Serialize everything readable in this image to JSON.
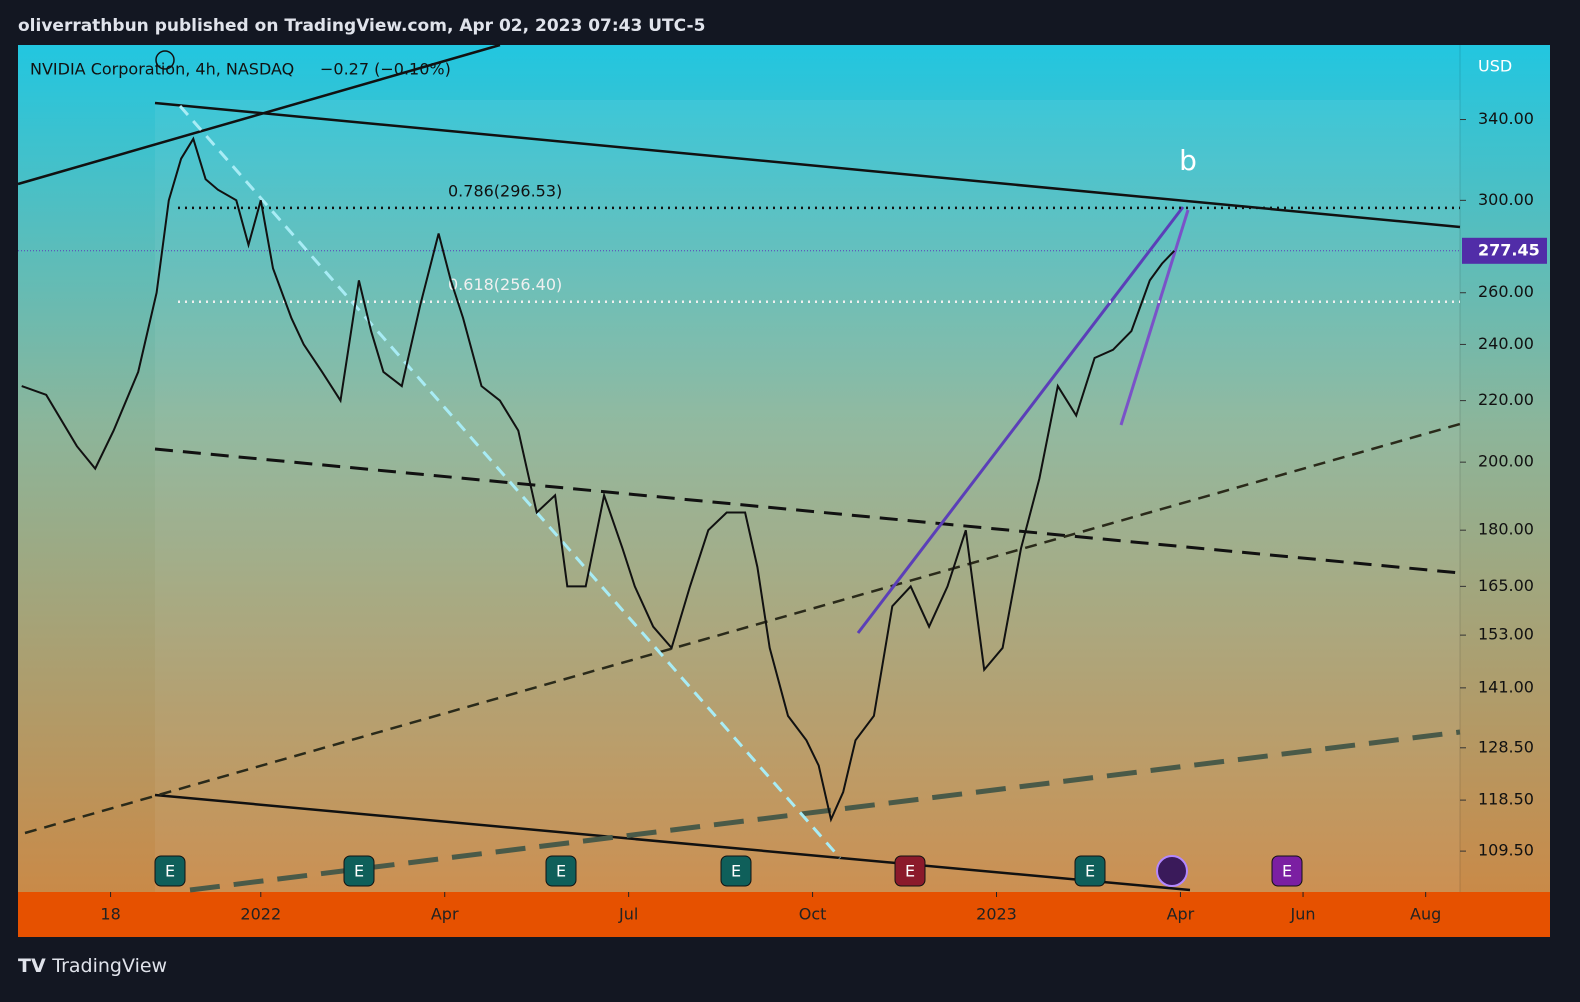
{
  "header": "oliverrathbun published on TradingView.com, Apr 02, 2023 07:43 UTC-5",
  "footer": "TradingView",
  "chart_data": {
    "type": "line",
    "title": "NVIDIA Corporation, 4h, NASDAQ",
    "change": "−0.27 (−0.10%)",
    "currency": "USD",
    "log_scale": true,
    "color": "#111111",
    "annotation": "b",
    "x": [
      -3.9,
      -3.5,
      -3.0,
      -2.7,
      -2.4,
      -2.0,
      -1.7,
      -1.5,
      -1.3,
      -1.1,
      -0.9,
      -0.7,
      -0.4,
      -0.2,
      0,
      0.2,
      0.5,
      0.7,
      1.0,
      1.3,
      1.6,
      1.8,
      2.0,
      2.3,
      2.6,
      2.9,
      3.1,
      3.3,
      3.6,
      3.9,
      4.2,
      4.5,
      4.8,
      5.0,
      5.3,
      5.6,
      5.9,
      6.1,
      6.4,
      6.7,
      7.0,
      7.3,
      7.6,
      7.9,
      8.1,
      8.3,
      8.6,
      8.9,
      9.1,
      9.3,
      9.5,
      9.7,
      10.0,
      10.3,
      10.6,
      10.9,
      11.2,
      11.5,
      11.8,
      12.1,
      12.4,
      12.7,
      13.0,
      13.3,
      13.6,
      13.9,
      14.2,
      14.5,
      14.7,
      14.9
    ],
    "values": [
      225,
      222,
      205,
      198,
      210,
      230,
      260,
      300,
      320,
      330,
      310,
      305,
      300,
      280,
      300,
      270,
      250,
      240,
      230,
      220,
      265,
      245,
      230,
      225,
      255,
      285,
      265,
      250,
      225,
      220,
      210,
      185,
      190,
      165,
      165,
      190,
      175,
      165,
      155,
      150,
      165,
      180,
      185,
      185,
      170,
      150,
      135,
      130,
      125,
      115,
      120,
      130,
      135,
      160,
      165,
      155,
      165,
      180,
      145,
      150,
      175,
      195,
      225,
      215,
      235,
      238,
      245,
      265,
      272,
      277.45
    ],
    "last_price": 277.45,
    "fib_levels": [
      {
        "value": 296.53,
        "label": "0.786(296.53)"
      },
      {
        "value": 256.4,
        "label": "0.618(256.40)"
      }
    ],
    "events": [
      "E",
      "E",
      "E",
      "E",
      "E",
      "E",
      "E"
    ],
    "xlim": [
      -3.96,
      19.56
    ],
    "xticks": [
      {
        "value": -2.45,
        "label": "18"
      },
      {
        "value": 0,
        "label": "2022"
      },
      {
        "value": 3,
        "label": "Apr"
      },
      {
        "value": 6,
        "label": "Jul"
      },
      {
        "value": 9,
        "label": "Oct"
      },
      {
        "value": 12,
        "label": "2023"
      },
      {
        "value": 15,
        "label": "Apr"
      },
      {
        "value": 17,
        "label": "Jun"
      },
      {
        "value": 19,
        "label": "Aug"
      }
    ],
    "ylim": [
      103.1,
      381.6
    ],
    "yticks": [
      {
        "value": 340,
        "label": "340.00"
      },
      {
        "value": 300,
        "label": "300.00"
      },
      {
        "value": 260,
        "label": "260.00"
      },
      {
        "value": 240,
        "label": "240.00"
      },
      {
        "value": 220,
        "label": "220.00"
      },
      {
        "value": 200,
        "label": "200.00"
      },
      {
        "value": 180,
        "label": "180.00"
      },
      {
        "value": 165,
        "label": "165.00"
      },
      {
        "value": 153,
        "label": "153.00"
      },
      {
        "value": 141,
        "label": "141.00"
      },
      {
        "value": 128.5,
        "label": "128.50"
      },
      {
        "value": 118.5,
        "label": "118.50"
      },
      {
        "value": 109.5,
        "label": "109.50"
      }
    ]
  }
}
